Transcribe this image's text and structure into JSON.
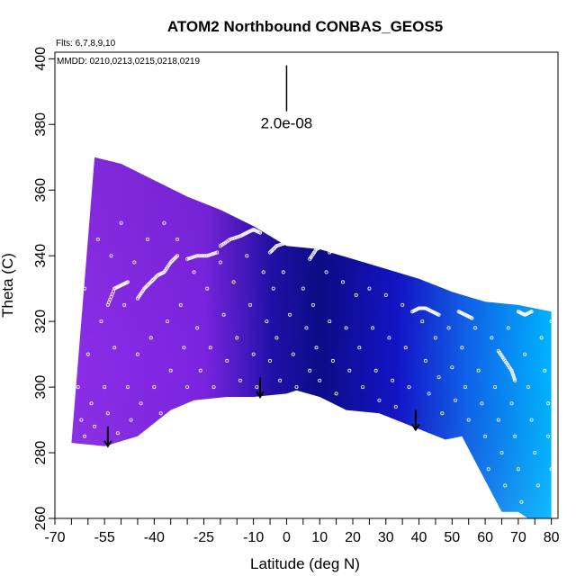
{
  "chart_data": {
    "type": "heatmap",
    "title": "ATOM2 Northbound CONBAS_GEOS5",
    "xlabel": "Latitude (deg N)",
    "ylabel": "Theta (C)",
    "xlim": [
      -70,
      82
    ],
    "ylim": [
      260,
      402
    ],
    "x_ticks": [
      -70,
      -55,
      -40,
      -25,
      -10,
      0,
      10,
      20,
      30,
      40,
      50,
      60,
      70,
      80
    ],
    "x_minor_ticks": [
      -65,
      -60,
      -50,
      -45,
      -35,
      -30,
      -20,
      -15,
      -5,
      5,
      15,
      25,
      35,
      45,
      55,
      65,
      75
    ],
    "y_ticks": [
      260,
      280,
      300,
      320,
      340,
      360,
      380,
      400
    ],
    "annotations": {
      "flights": "Flts: 6,7,8,9,10",
      "dates": "MMDD: 0210,0213,0215,0218,0219",
      "scale_value": "2.0e-08"
    },
    "scale_bar": {
      "x": 0,
      "y_top": 398,
      "y_bottom": 384
    },
    "colors": {
      "south": "#8a2be2",
      "mid_dark": "#0a0a8a",
      "mid": "#1a1acd",
      "north": "#00b4ff",
      "points": "#ffffff"
    },
    "coverage_top": [
      [
        -58,
        370
      ],
      [
        -50,
        368
      ],
      [
        -40,
        363
      ],
      [
        -30,
        358
      ],
      [
        -20,
        354
      ],
      [
        -10,
        349
      ],
      [
        0,
        343
      ],
      [
        10,
        342
      ],
      [
        20,
        339
      ],
      [
        30,
        336
      ],
      [
        40,
        333
      ],
      [
        50,
        329
      ],
      [
        60,
        326
      ],
      [
        70,
        325
      ],
      [
        80,
        323
      ]
    ],
    "coverage_bottom": [
      [
        -65,
        283
      ],
      [
        -55,
        282
      ],
      [
        -45,
        285
      ],
      [
        -35,
        293
      ],
      [
        -28,
        296
      ],
      [
        -18,
        297
      ],
      [
        -10,
        297
      ],
      [
        0,
        298
      ],
      [
        3,
        299
      ],
      [
        10,
        297
      ],
      [
        18,
        293
      ],
      [
        28,
        292
      ],
      [
        38,
        288
      ],
      [
        48,
        284
      ],
      [
        53,
        285
      ],
      [
        65,
        262
      ],
      [
        70,
        262
      ],
      [
        73,
        260
      ],
      [
        80,
        260
      ]
    ],
    "arrows": [
      {
        "x": -54,
        "y_top": 288,
        "y_bottom": 282
      },
      {
        "x": -8,
        "y_top": 303,
        "y_bottom": 297
      },
      {
        "x": 39,
        "y_top": 293,
        "y_bottom": 287
      }
    ],
    "flight_tracks": [
      [
        [
          -54,
          325
        ],
        [
          -52,
          330
        ],
        [
          -50,
          331
        ],
        [
          -48,
          332
        ]
      ],
      [
        [
          -45,
          327
        ],
        [
          -43,
          330
        ],
        [
          -41,
          332
        ],
        [
          -39,
          334
        ],
        [
          -37,
          335
        ],
        [
          -35,
          338
        ],
        [
          -33,
          340
        ]
      ],
      [
        [
          -30,
          339
        ],
        [
          -27,
          340
        ],
        [
          -24,
          340
        ],
        [
          -21,
          341
        ]
      ],
      [
        [
          -20,
          343
        ],
        [
          -17,
          345
        ],
        [
          -14,
          346
        ],
        [
          -12,
          347
        ],
        [
          -10,
          348
        ],
        [
          -8,
          347
        ]
      ],
      [
        [
          -5,
          341
        ],
        [
          -3,
          343
        ],
        [
          0,
          344
        ],
        [
          3,
          345
        ],
        [
          6,
          344
        ]
      ],
      [
        [
          7,
          339
        ],
        [
          9,
          342
        ],
        [
          11,
          343
        ]
      ],
      [
        [
          13,
          341
        ],
        [
          15,
          343
        ],
        [
          17,
          344
        ]
      ],
      [
        [
          20,
          345
        ],
        [
          22,
          345
        ],
        [
          24,
          344
        ]
      ],
      [
        [
          38,
          323
        ],
        [
          40,
          324
        ],
        [
          42,
          324
        ],
        [
          44,
          323
        ],
        [
          46,
          322
        ]
      ],
      [
        [
          52,
          323
        ],
        [
          54,
          322
        ],
        [
          56,
          321
        ]
      ],
      [
        [
          64,
          311
        ],
        [
          66,
          308
        ],
        [
          68,
          305
        ],
        [
          69,
          302
        ]
      ],
      [
        [
          70,
          323
        ],
        [
          72,
          322
        ],
        [
          74,
          323
        ]
      ]
    ],
    "scatter_points": [
      [
        -69,
        342
      ],
      [
        -69,
        335
      ],
      [
        -69,
        325
      ],
      [
        -68,
        315
      ],
      [
        -68,
        305
      ],
      [
        -67,
        295
      ],
      [
        -67,
        288
      ],
      [
        -66,
        355
      ],
      [
        -66,
        348
      ],
      [
        -66,
        318
      ],
      [
        -64,
        370
      ],
      [
        -64,
        362
      ],
      [
        -63,
        340
      ],
      [
        -63,
        300
      ],
      [
        -62,
        290
      ],
      [
        -61,
        285
      ],
      [
        -61,
        330
      ],
      [
        -60,
        365
      ],
      [
        -60,
        310
      ],
      [
        -59,
        295
      ],
      [
        -58,
        288
      ],
      [
        -57,
        345
      ],
      [
        -56,
        320
      ],
      [
        -55,
        300
      ],
      [
        -54,
        292
      ],
      [
        -53,
        340
      ],
      [
        -52,
        312
      ],
      [
        -51,
        286
      ],
      [
        -50,
        350
      ],
      [
        -49,
        325
      ],
      [
        -48,
        300
      ],
      [
        -47,
        290
      ],
      [
        -46,
        338
      ],
      [
        -45,
        310
      ],
      [
        -44,
        295
      ],
      [
        -42,
        345
      ],
      [
        -41,
        315
      ],
      [
        -40,
        300
      ],
      [
        -38,
        292
      ],
      [
        -37,
        350
      ],
      [
        -36,
        320
      ],
      [
        -35,
        305
      ],
      [
        -33,
        345
      ],
      [
        -32,
        325
      ],
      [
        -31,
        312
      ],
      [
        -30,
        300
      ],
      [
        -28,
        335
      ],
      [
        -27,
        318
      ],
      [
        -26,
        305
      ],
      [
        -24,
        330
      ],
      [
        -23,
        312
      ],
      [
        -22,
        300
      ],
      [
        -20,
        338
      ],
      [
        -19,
        322
      ],
      [
        -18,
        308
      ],
      [
        -16,
        332
      ],
      [
        -15,
        315
      ],
      [
        -14,
        302
      ],
      [
        -12,
        340
      ],
      [
        -11,
        325
      ],
      [
        -10,
        310
      ],
      [
        -9,
        300
      ],
      [
        -7,
        335
      ],
      [
        -6,
        320
      ],
      [
        -5,
        308
      ],
      [
        -4,
        330
      ],
      [
        -3,
        315
      ],
      [
        -2,
        302
      ],
      [
        -1,
        335
      ],
      [
        1,
        322
      ],
      [
        2,
        310
      ],
      [
        3,
        300
      ],
      [
        5,
        330
      ],
      [
        6,
        318
      ],
      [
        7,
        305
      ],
      [
        8,
        325
      ],
      [
        9,
        312
      ],
      [
        10,
        302
      ],
      [
        12,
        335
      ],
      [
        13,
        320
      ],
      [
        14,
        308
      ],
      [
        15,
        298
      ],
      [
        17,
        332
      ],
      [
        18,
        318
      ],
      [
        19,
        305
      ],
      [
        21,
        328
      ],
      [
        22,
        312
      ],
      [
        23,
        300
      ],
      [
        25,
        330
      ],
      [
        26,
        318
      ],
      [
        27,
        305
      ],
      [
        28,
        296
      ],
      [
        30,
        328
      ],
      [
        31,
        315
      ],
      [
        32,
        302
      ],
      [
        33,
        294
      ],
      [
        35,
        325
      ],
      [
        36,
        312
      ],
      [
        37,
        300
      ],
      [
        41,
        320
      ],
      [
        42,
        308
      ],
      [
        43,
        298
      ],
      [
        45,
        315
      ],
      [
        46,
        303
      ],
      [
        47,
        292
      ],
      [
        49,
        318
      ],
      [
        50,
        306
      ],
      [
        51,
        296
      ],
      [
        53,
        312
      ],
      [
        54,
        300
      ],
      [
        55,
        290
      ],
      [
        57,
        318
      ],
      [
        58,
        305
      ],
      [
        59,
        295
      ],
      [
        60,
        285
      ],
      [
        61,
        275
      ],
      [
        62,
        315
      ],
      [
        63,
        300
      ],
      [
        64,
        290
      ],
      [
        65,
        280
      ],
      [
        66,
        270
      ],
      [
        67,
        318
      ],
      [
        68,
        295
      ],
      [
        69,
        285
      ],
      [
        70,
        275
      ],
      [
        71,
        265
      ],
      [
        72,
        310
      ],
      [
        73,
        300
      ],
      [
        74,
        290
      ],
      [
        75,
        280
      ],
      [
        76,
        270
      ],
      [
        77,
        315
      ],
      [
        78,
        305
      ],
      [
        79,
        295
      ],
      [
        79,
        285
      ],
      [
        80,
        275
      ],
      [
        80,
        320
      ],
      [
        81,
        310
      ]
    ]
  }
}
